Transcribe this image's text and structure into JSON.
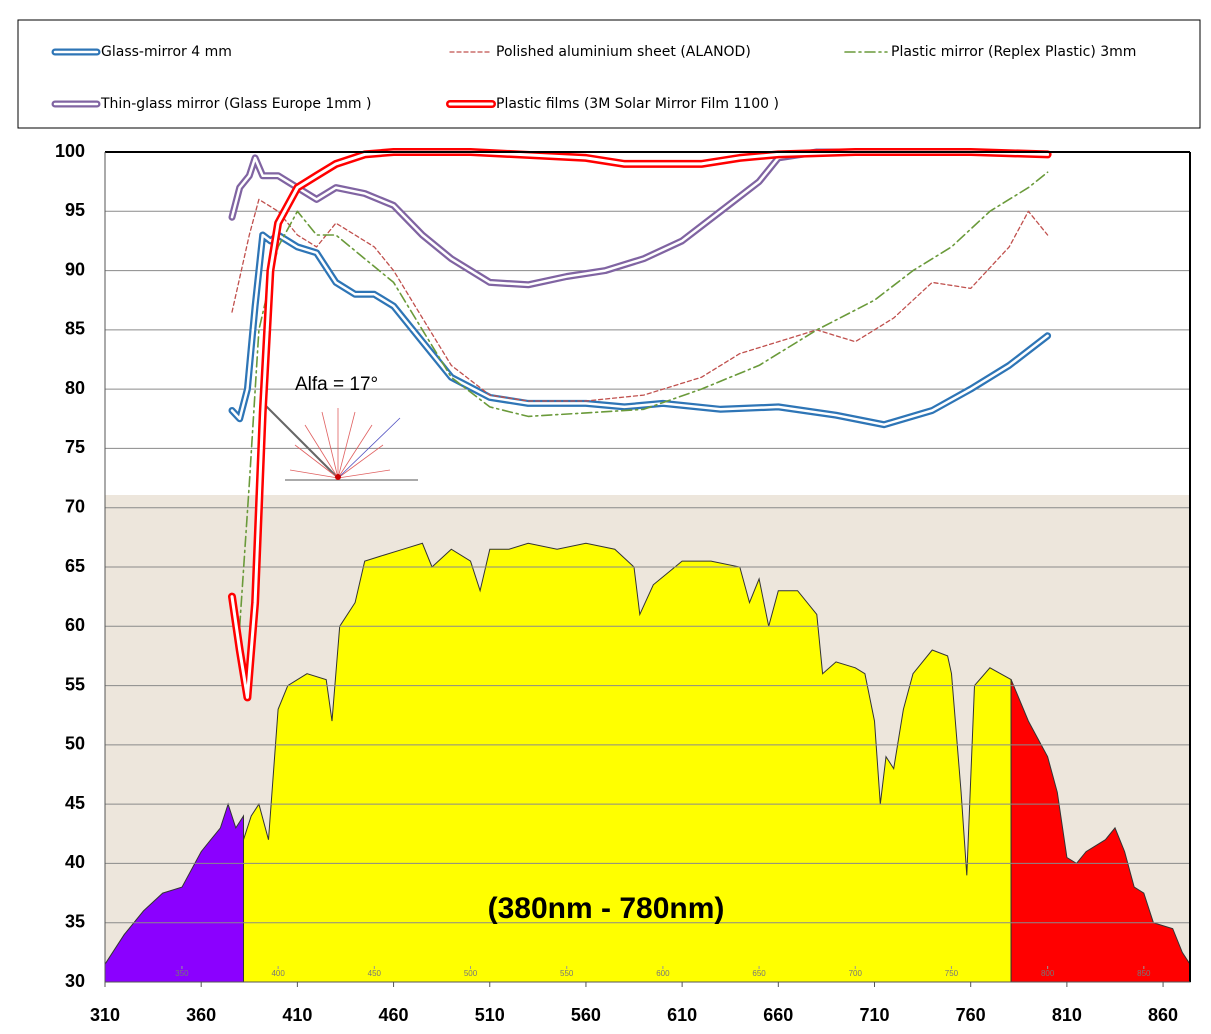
{
  "chart_data": {
    "type": "line",
    "xlim": [
      310,
      874
    ],
    "ylim": [
      30,
      100
    ],
    "xticks": [
      310,
      360,
      410,
      460,
      510,
      560,
      610,
      660,
      710,
      760,
      810,
      860
    ],
    "yticks": [
      30,
      35,
      40,
      45,
      50,
      55,
      60,
      65,
      70,
      75,
      80,
      85,
      90,
      95,
      100
    ],
    "x2lim": [
      310,
      874
    ],
    "x2ticks": [
      350,
      400,
      450,
      500,
      550,
      600,
      650,
      700,
      750,
      800,
      850
    ],
    "grid": true,
    "series": [
      {
        "name": "Glass-mirror 4 mm",
        "color": "#2e75b6",
        "style": "double",
        "x": [
          376,
          380,
          384,
          388,
          392,
          396,
          400,
          410,
          420,
          430,
          440,
          450,
          460,
          475,
          490,
          510,
          530,
          560,
          580,
          600,
          630,
          660,
          690,
          715,
          740,
          760,
          780,
          800
        ],
        "values": [
          78.2,
          77.5,
          80,
          87,
          93,
          92.5,
          93,
          92,
          91.5,
          89,
          88,
          88,
          87,
          84,
          81,
          79.3,
          78.8,
          78.8,
          78.5,
          78.8,
          78.3,
          78.5,
          77.8,
          77,
          78.2,
          80,
          82,
          84.5
        ]
      },
      {
        "name": "Polished aluminium sheet (ALANOD)",
        "color": "#c0504d",
        "style": "dashed",
        "x": [
          376,
          385,
          390,
          400,
          410,
          420,
          430,
          440,
          450,
          460,
          475,
          490,
          510,
          530,
          560,
          590,
          620,
          640,
          660,
          680,
          700,
          720,
          740,
          760,
          780,
          790,
          800
        ],
        "values": [
          86.5,
          93,
          96,
          95,
          93,
          92,
          94,
          93,
          92,
          90,
          86,
          82,
          79.5,
          79,
          79,
          79.5,
          81,
          83,
          84,
          85,
          84,
          86,
          89,
          88.5,
          92,
          95,
          93
        ]
      },
      {
        "name": "Plastic mirror (Replex Plastic) 3mm",
        "color": "#6a9a3a",
        "style": "dash-dot",
        "x": [
          380,
          385,
          390,
          400,
          410,
          420,
          430,
          445,
          460,
          475,
          490,
          510,
          530,
          560,
          590,
          620,
          650,
          680,
          710,
          730,
          750,
          770,
          790,
          800
        ],
        "values": [
          60,
          72,
          85,
          92,
          95,
          93,
          93,
          91,
          89,
          85,
          81,
          78.5,
          77.7,
          78,
          78.3,
          80,
          82,
          85,
          87.5,
          90,
          92,
          95,
          97,
          98.3
        ]
      },
      {
        "name": "Thin-glass mirror (Glass Europe 1mm )",
        "color": "#8064a2",
        "style": "double",
        "x": [
          376,
          380,
          385,
          388,
          392,
          400,
          410,
          420,
          430,
          445,
          460,
          475,
          490,
          510,
          530,
          550,
          570,
          590,
          610,
          630,
          650,
          660,
          680,
          700,
          760
        ],
        "values": [
          94.5,
          97,
          98,
          99.5,
          98,
          98,
          97,
          96,
          97,
          96.5,
          95.5,
          93,
          91,
          89,
          88.8,
          89.5,
          90,
          91,
          92.5,
          95,
          97.5,
          99.5,
          100,
          100,
          100
        ]
      },
      {
        "name": "Plastic films (3M Solar Mirror Film 1100  )",
        "color": "#ff0000",
        "style": "double-thick",
        "x": [
          376,
          380,
          384,
          388,
          392,
          396,
          400,
          410,
          420,
          430,
          445,
          460,
          500,
          560,
          580,
          600,
          620,
          640,
          660,
          700,
          760,
          800
        ],
        "values": [
          62.5,
          58,
          54,
          62,
          78,
          90,
          94,
          97,
          98,
          99,
          99.8,
          100,
          100,
          99.5,
          99,
          99,
          99,
          99.5,
          99.8,
          100,
          100,
          99.8
        ]
      }
    ],
    "areas": [
      {
        "color": "#8b00ff",
        "x": [
          310,
          320,
          330,
          340,
          350,
          360,
          365,
          370,
          374,
          378,
          382
        ],
        "values": [
          31.5,
          34,
          36,
          37.5,
          38,
          41,
          42,
          43,
          45,
          43,
          44
        ]
      },
      {
        "color": "#ffff00",
        "x": [
          382,
          386,
          390,
          395,
          400,
          405,
          415,
          425,
          428,
          432,
          440,
          445,
          455,
          465,
          475,
          480,
          490,
          500,
          505,
          510,
          520,
          530,
          545,
          560,
          575,
          585,
          588,
          595,
          610,
          625,
          640,
          645,
          650,
          655,
          660,
          670,
          680,
          683,
          690,
          700,
          705,
          710,
          713,
          716,
          720,
          725,
          730,
          740,
          748,
          750,
          755,
          758,
          762,
          770,
          781
        ],
        "values": [
          42,
          44,
          45,
          42,
          53,
          55,
          56,
          55.5,
          52,
          60,
          62,
          65.5,
          66,
          66.5,
          67,
          65,
          66.5,
          65.5,
          63,
          66.5,
          66.5,
          67,
          66.5,
          67,
          66.5,
          65,
          61,
          63.5,
          65.5,
          65.5,
          65,
          62,
          64,
          60,
          63,
          63,
          61,
          56,
          57,
          56.5,
          56,
          52,
          45,
          49,
          48,
          53,
          56,
          58,
          57.5,
          56,
          46,
          39,
          55,
          56.5,
          55.5
        ]
      },
      {
        "color": "#ff0000",
        "x": [
          781,
          790,
          800,
          805,
          810,
          815,
          820,
          830,
          835,
          840,
          845,
          850,
          855,
          865,
          870,
          874
        ],
        "values": [
          55.5,
          52,
          49,
          46,
          40.5,
          40,
          41,
          42,
          43,
          41,
          38,
          37.5,
          35,
          34.5,
          32.5,
          31.5
        ]
      }
    ],
    "annotations": [
      {
        "text": "(380nm - 780nm)"
      },
      {
        "text": "Alfa = 17°"
      }
    ]
  }
}
